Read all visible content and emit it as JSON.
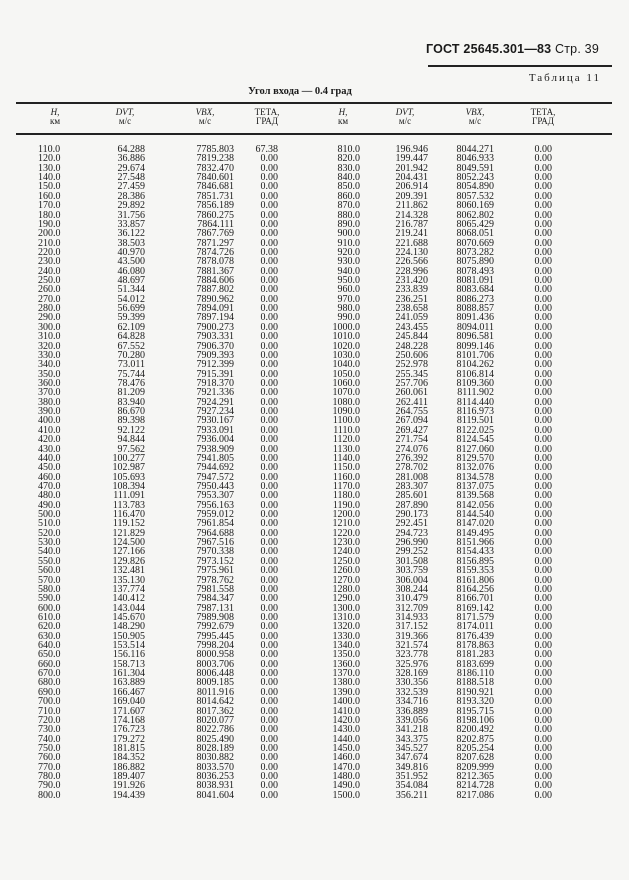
{
  "header": {
    "standard": "ГОСТ 25645.301—83",
    "page": "Стр. 39"
  },
  "table_label": "Таблица 11",
  "table_title": "Угол входа — 0.4 град",
  "columns": [
    {
      "name": "H,",
      "unit": "км"
    },
    {
      "name": "DVT,",
      "unit": "м/с"
    },
    {
      "name": "VBX,",
      "unit": "м/с"
    },
    {
      "name": "ТЕТА,",
      "unit": "ГРАД"
    },
    {
      "name": "H,",
      "unit": "км"
    },
    {
      "name": "DVT,",
      "unit": "м/с"
    },
    {
      "name": "VBX,",
      "unit": "м/с"
    },
    {
      "name": "ТЕТА,",
      "unit": "ГРАД"
    }
  ],
  "left_rows": [
    [
      "110.0",
      "64.288",
      "7785.803",
      "67.38"
    ],
    [
      "120.0",
      "36.886",
      "7819.238",
      "0.00"
    ],
    [
      "130.0",
      "29.674",
      "7832.470",
      "0.00"
    ],
    [
      "140.0",
      "27.548",
      "7840.601",
      "0.00"
    ],
    [
      "150.0",
      "27.459",
      "7846.681",
      "0.00"
    ],
    [
      "160.0",
      "28.386",
      "7851.731",
      "0.00"
    ],
    [
      "170.0",
      "29.892",
      "7856.189",
      "0.00"
    ],
    [
      "180.0",
      "31.756",
      "7860.275",
      "0.00"
    ],
    [
      "190.0",
      "33.857",
      "7864.111",
      "0.00"
    ],
    [
      "200.0",
      "36.122",
      "7867.769",
      "0.00"
    ],
    [
      "210.0",
      "38.503",
      "7871.297",
      "0.00"
    ],
    [
      "220.0",
      "40.970",
      "7874.726",
      "0.00"
    ],
    [
      "230.0",
      "43.500",
      "7878.078",
      "0.00"
    ],
    [
      "240.0",
      "46.080",
      "7881.367",
      "0.00"
    ],
    [
      "250.0",
      "48.697",
      "7884.606",
      "0.00"
    ],
    [
      "260.0",
      "51.344",
      "7887.802",
      "0.00"
    ],
    [
      "270.0",
      "54.012",
      "7890.962",
      "0.00"
    ],
    [
      "280.0",
      "56.699",
      "7894.091",
      "0.00"
    ],
    [
      "290.0",
      "59.399",
      "7897.194",
      "0.00"
    ],
    [
      "300.0",
      "62.109",
      "7900.273",
      "0.00"
    ],
    [
      "310.0",
      "64.828",
      "7903.331",
      "0.00"
    ],
    [
      "320.0",
      "67.552",
      "7906.370",
      "0.00"
    ],
    [
      "330.0",
      "70.280",
      "7909.393",
      "0.00"
    ],
    [
      "340.0",
      "73.011",
      "7912.399",
      "0.00"
    ],
    [
      "350.0",
      "75.744",
      "7915.391",
      "0.00"
    ],
    [
      "360.0",
      "78.476",
      "7918.370",
      "0.00"
    ],
    [
      "370.0",
      "81.209",
      "7921.336",
      "0.00"
    ],
    [
      "380.0",
      "83.940",
      "7924.291",
      "0.00"
    ],
    [
      "390.0",
      "86.670",
      "7927.234",
      "0.00"
    ],
    [
      "400.0",
      "89.398",
      "7930.167",
      "0.00"
    ],
    [
      "410.0",
      "92.122",
      "7933.091",
      "0.00"
    ],
    [
      "420.0",
      "94.844",
      "7936.004",
      "0.00"
    ],
    [
      "430.0",
      "97.562",
      "7938.909",
      "0.00"
    ],
    [
      "440.0",
      "100.277",
      "7941.805",
      "0.00"
    ],
    [
      "450.0",
      "102.987",
      "7944.692",
      "0.00"
    ],
    [
      "460.0",
      "105.693",
      "7947.572",
      "0.00"
    ],
    [
      "470.0",
      "108.394",
      "7950.443",
      "0.00"
    ],
    [
      "480.0",
      "111.091",
      "7953.307",
      "0.00"
    ],
    [
      "490.0",
      "113.783",
      "7956.163",
      "0.00"
    ],
    [
      "500.0",
      "116.470",
      "7959.012",
      "0.00"
    ],
    [
      "510.0",
      "119.152",
      "7961.854",
      "0.00"
    ],
    [
      "520.0",
      "121.829",
      "7964.688",
      "0.00"
    ],
    [
      "530.0",
      "124.500",
      "7967.516",
      "0.00"
    ],
    [
      "540.0",
      "127.166",
      "7970.338",
      "0.00"
    ],
    [
      "550.0",
      "129.826",
      "7973.152",
      "0.00"
    ],
    [
      "560.0",
      "132.481",
      "7975.961",
      "0.00"
    ],
    [
      "570.0",
      "135.130",
      "7978.762",
      "0.00"
    ],
    [
      "580.0",
      "137.774",
      "7981.558",
      "0.00"
    ],
    [
      "590.0",
      "140.412",
      "7984.347",
      "0.00"
    ],
    [
      "600.0",
      "143.044",
      "7987.131",
      "0.00"
    ],
    [
      "610.0",
      "145.670",
      "7989.908",
      "0.00"
    ],
    [
      "620.0",
      "148.290",
      "7992.679",
      "0.00"
    ],
    [
      "630.0",
      "150.905",
      "7995.445",
      "0.00"
    ],
    [
      "640.0",
      "153.514",
      "7998.204",
      "0.00"
    ],
    [
      "650.0",
      "156.116",
      "8000.958",
      "0.00"
    ],
    [
      "660.0",
      "158.713",
      "8003.706",
      "0.00"
    ],
    [
      "670.0",
      "161.304",
      "8006.448",
      "0.00"
    ],
    [
      "680.0",
      "163.889",
      "8009.185",
      "0.00"
    ],
    [
      "690.0",
      "166.467",
      "8011.916",
      "0.00"
    ],
    [
      "700.0",
      "169.040",
      "8014.642",
      "0.00"
    ],
    [
      "710.0",
      "171.607",
      "8017.362",
      "0.00"
    ],
    [
      "720.0",
      "174.168",
      "8020.077",
      "0.00"
    ],
    [
      "730.0",
      "176.723",
      "8022.786",
      "0.00"
    ],
    [
      "740.0",
      "179.272",
      "8025.490",
      "0.00"
    ],
    [
      "750.0",
      "181.815",
      "8028.189",
      "0.00"
    ],
    [
      "760.0",
      "184.352",
      "8030.882",
      "0.00"
    ],
    [
      "770.0",
      "186.882",
      "8033.570",
      "0.00"
    ],
    [
      "780.0",
      "189.407",
      "8036.253",
      "0.00"
    ],
    [
      "790.0",
      "191.926",
      "8038.931",
      "0.00"
    ],
    [
      "800.0",
      "194.439",
      "8041.604",
      "0.00"
    ]
  ],
  "right_rows": [
    [
      "810.0",
      "196.946",
      "8044.271",
      "0.00"
    ],
    [
      "820.0",
      "199.447",
      "8046.933",
      "0.00"
    ],
    [
      "830.0",
      "201.942",
      "8049.591",
      "0.00"
    ],
    [
      "840.0",
      "204.431",
      "8052.243",
      "0.00"
    ],
    [
      "850.0",
      "206.914",
      "8054.890",
      "0.00"
    ],
    [
      "860.0",
      "209.391",
      "8057.532",
      "0.00"
    ],
    [
      "870.0",
      "211.862",
      "8060.169",
      "0.00"
    ],
    [
      "880.0",
      "214.328",
      "8062.802",
      "0.00"
    ],
    [
      "890.0",
      "216.787",
      "8065.429",
      "0.00"
    ],
    [
      "900.0",
      "219.241",
      "8068.051",
      "0.00"
    ],
    [
      "910.0",
      "221.688",
      "8070.669",
      "0.00"
    ],
    [
      "920.0",
      "224.130",
      "8073.282",
      "0.00"
    ],
    [
      "930.0",
      "226.566",
      "8075.890",
      "0.00"
    ],
    [
      "940.0",
      "228.996",
      "8078.493",
      "0.00"
    ],
    [
      "950.0",
      "231.420",
      "8081.091",
      "0.00"
    ],
    [
      "960.0",
      "233.839",
      "8083.684",
      "0.00"
    ],
    [
      "970.0",
      "236.251",
      "8086.273",
      "0.00"
    ],
    [
      "980.0",
      "238.658",
      "8088.857",
      "0.00"
    ],
    [
      "990.0",
      "241.059",
      "8091.436",
      "0.00"
    ],
    [
      "1000.0",
      "243.455",
      "8094.011",
      "0.00"
    ],
    [
      "1010.0",
      "245.844",
      "8096.581",
      "0.00"
    ],
    [
      "1020.0",
      "248.228",
      "8099.146",
      "0.00"
    ],
    [
      "1030.0",
      "250.606",
      "8101.706",
      "0.00"
    ],
    [
      "1040.0",
      "252.978",
      "8104.262",
      "0.00"
    ],
    [
      "1050.0",
      "255.345",
      "8106.814",
      "0.00"
    ],
    [
      "1060.0",
      "257.706",
      "8109.360",
      "0.00"
    ],
    [
      "1070.0",
      "260.061",
      "8111.902",
      "0.00"
    ],
    [
      "1080.0",
      "262.411",
      "8114.440",
      "0.00"
    ],
    [
      "1090.0",
      "264.755",
      "8116.973",
      "0.00"
    ],
    [
      "1100.0",
      "267.094",
      "8119.501",
      "0.00"
    ],
    [
      "1110.0",
      "269.427",
      "8122.025",
      "0.00"
    ],
    [
      "1120.0",
      "271.754",
      "8124.545",
      "0.00"
    ],
    [
      "1130.0",
      "274.076",
      "8127.060",
      "0.00"
    ],
    [
      "1140.0",
      "276.392",
      "8129.570",
      "0.00"
    ],
    [
      "1150.0",
      "278.702",
      "8132.076",
      "0.00"
    ],
    [
      "1160.0",
      "281.008",
      "8134.578",
      "0.00"
    ],
    [
      "1170.0",
      "283.307",
      "8137.075",
      "0.00"
    ],
    [
      "1180.0",
      "285.601",
      "8139.568",
      "0.00"
    ],
    [
      "1190.0",
      "287.890",
      "8142.056",
      "0.00"
    ],
    [
      "1200.0",
      "290.173",
      "8144.540",
      "0.00"
    ],
    [
      "1210.0",
      "292.451",
      "8147.020",
      "0.00"
    ],
    [
      "1220.0",
      "294.723",
      "8149.495",
      "0.00"
    ],
    [
      "1230.0",
      "296.990",
      "8151.966",
      "0.00"
    ],
    [
      "1240.0",
      "299.252",
      "8154.433",
      "0.00"
    ],
    [
      "1250.0",
      "301.508",
      "8156.895",
      "0.00"
    ],
    [
      "1260.0",
      "303.759",
      "8159.353",
      "0.00"
    ],
    [
      "1270.0",
      "306.004",
      "8161.806",
      "0.00"
    ],
    [
      "1280.0",
      "308.244",
      "8164.256",
      "0.00"
    ],
    [
      "1290.0",
      "310.479",
      "8166.701",
      "0.00"
    ],
    [
      "1300.0",
      "312.709",
      "8169.142",
      "0.00"
    ],
    [
      "1310.0",
      "314.933",
      "8171.579",
      "0.00"
    ],
    [
      "1320.0",
      "317.152",
      "8174.011",
      "0.00"
    ],
    [
      "1330.0",
      "319.366",
      "8176.439",
      "0.00"
    ],
    [
      "1340.0",
      "321.574",
      "8178.863",
      "0.00"
    ],
    [
      "1350.0",
      "323.778",
      "8181.283",
      "0.00"
    ],
    [
      "1360.0",
      "325.976",
      "8183.699",
      "0.00"
    ],
    [
      "1370.0",
      "328.169",
      "8186.110",
      "0.00"
    ],
    [
      "1380.0",
      "330.356",
      "8188.518",
      "0.00"
    ],
    [
      "1390.0",
      "332.539",
      "8190.921",
      "0.00"
    ],
    [
      "1400.0",
      "334.716",
      "8193.320",
      "0.00"
    ],
    [
      "1410.0",
      "336.889",
      "8195.715",
      "0.00"
    ],
    [
      "1420.0",
      "339.056",
      "8198.106",
      "0.00"
    ],
    [
      "1430.0",
      "341.218",
      "8200.492",
      "0.00"
    ],
    [
      "1440.0",
      "343.375",
      "8202.875",
      "0.00"
    ],
    [
      "1450.0",
      "345.527",
      "8205.254",
      "0.00"
    ],
    [
      "1460.0",
      "347.674",
      "8207.628",
      "0.00"
    ],
    [
      "1470.0",
      "349.816",
      "8209.999",
      "0.00"
    ],
    [
      "1480.0",
      "351.952",
      "8212.365",
      "0.00"
    ],
    [
      "1490.0",
      "354.084",
      "8214.728",
      "0.00"
    ],
    [
      "1500.0",
      "356.211",
      "8217.086",
      "0.00"
    ]
  ]
}
